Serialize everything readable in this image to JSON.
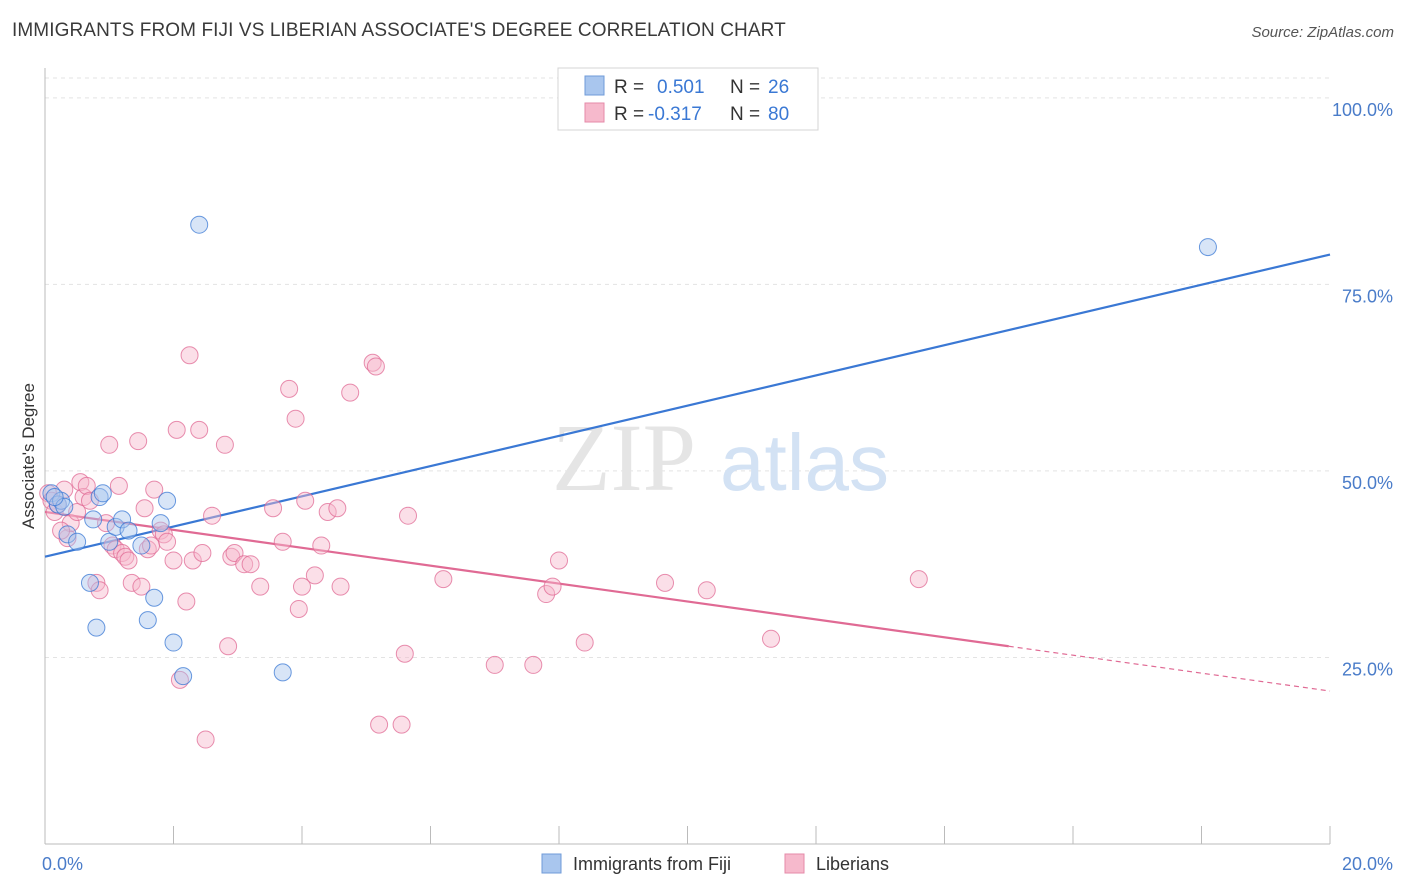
{
  "title": "IMMIGRANTS FROM FIJI VS LIBERIAN ASSOCIATE'S DEGREE CORRELATION CHART",
  "source": "Source: ZipAtlas.com",
  "watermark": {
    "zip": "ZIP",
    "atlas": "atlas"
  },
  "colors": {
    "blue": "#3a78d4",
    "blue_fill": "#a9c6ee",
    "pink": "#e06a94",
    "pink_fill": "#f6b9cc",
    "tick_text": "#4a7cc9",
    "grid": "#e3e3e3"
  },
  "legend": [
    {
      "r_label": "R =",
      "r_value": "0.501",
      "n_label": "N =",
      "n_value": "26",
      "color": "blue"
    },
    {
      "r_label": "R =",
      "r_value": "-0.317",
      "n_label": "N =",
      "n_value": "80",
      "color": "pink"
    }
  ],
  "bottom_legend": [
    {
      "label": "Immigrants from Fiji",
      "color": "blue"
    },
    {
      "label": "Liberians",
      "color": "pink"
    }
  ],
  "chart_data": {
    "type": "scatter",
    "xlabel": "",
    "ylabel": "Associate's Degree",
    "xlim": [
      0,
      20
    ],
    "ylim": [
      0,
      104
    ],
    "x_tick_labels": [
      {
        "value": 0,
        "label": "0.0%"
      },
      {
        "value": 20,
        "label": "20.0%"
      }
    ],
    "y_tick_labels": [
      {
        "value": 25,
        "label": "25.0%"
      },
      {
        "value": 50,
        "label": "50.0%"
      },
      {
        "value": 75,
        "label": "75.0%"
      },
      {
        "value": 100,
        "label": "100.0%"
      }
    ],
    "x_minor_ticks": [
      0,
      2,
      4,
      6,
      8,
      10,
      12,
      14,
      16,
      18,
      20
    ],
    "grid": true,
    "legend_position": "top-center",
    "series": [
      {
        "name": "Immigrants from Fiji",
        "color": "blue",
        "points": [
          [
            0.1,
            47.0
          ],
          [
            0.2,
            45.5
          ],
          [
            0.25,
            46.0
          ],
          [
            0.3,
            45.2
          ],
          [
            0.35,
            41.5
          ],
          [
            0.5,
            40.5
          ],
          [
            0.7,
            35.0
          ],
          [
            0.75,
            43.5
          ],
          [
            0.8,
            29.0
          ],
          [
            0.85,
            46.5
          ],
          [
            0.9,
            47.0
          ],
          [
            1.0,
            40.5
          ],
          [
            1.1,
            42.5
          ],
          [
            1.2,
            43.5
          ],
          [
            1.3,
            42.0
          ],
          [
            1.5,
            40.0
          ],
          [
            1.6,
            30.0
          ],
          [
            1.7,
            33.0
          ],
          [
            1.8,
            43.0
          ],
          [
            1.9,
            46.0
          ],
          [
            2.0,
            27.0
          ],
          [
            2.15,
            22.5
          ],
          [
            2.4,
            83.0
          ],
          [
            3.7,
            23.0
          ],
          [
            18.1,
            80.0
          ],
          [
            0.15,
            46.5
          ]
        ],
        "trend": {
          "x0": 0,
          "y0": 38.5,
          "x1": 20,
          "y1": 79.0
        }
      },
      {
        "name": "Liberians",
        "color": "pink",
        "points": [
          [
            0.05,
            47.0
          ],
          [
            0.1,
            46.0
          ],
          [
            0.15,
            44.5
          ],
          [
            0.2,
            45.5
          ],
          [
            0.3,
            47.5
          ],
          [
            0.35,
            41.0
          ],
          [
            0.4,
            43.0
          ],
          [
            0.5,
            44.5
          ],
          [
            0.55,
            48.5
          ],
          [
            0.6,
            46.5
          ],
          [
            0.65,
            48.0
          ],
          [
            0.7,
            46.0
          ],
          [
            0.8,
            35.0
          ],
          [
            0.85,
            34.0
          ],
          [
            0.95,
            43.0
          ],
          [
            1.0,
            53.5
          ],
          [
            1.05,
            40.0
          ],
          [
            1.1,
            39.5
          ],
          [
            1.15,
            48.0
          ],
          [
            1.2,
            39.0
          ],
          [
            1.25,
            38.5
          ],
          [
            1.3,
            38.0
          ],
          [
            1.35,
            35.0
          ],
          [
            1.45,
            54.0
          ],
          [
            1.5,
            34.5
          ],
          [
            1.55,
            45.0
          ],
          [
            1.6,
            39.5
          ],
          [
            1.7,
            47.5
          ],
          [
            1.8,
            42.0
          ],
          [
            1.85,
            41.5
          ],
          [
            1.9,
            40.5
          ],
          [
            2.0,
            38.0
          ],
          [
            2.05,
            55.5
          ],
          [
            2.1,
            22.0
          ],
          [
            2.2,
            32.5
          ],
          [
            2.25,
            65.5
          ],
          [
            2.3,
            38.0
          ],
          [
            2.4,
            55.5
          ],
          [
            2.45,
            39.0
          ],
          [
            2.5,
            14.0
          ],
          [
            2.6,
            44.0
          ],
          [
            2.8,
            53.5
          ],
          [
            2.85,
            26.5
          ],
          [
            2.9,
            38.5
          ],
          [
            2.95,
            39.0
          ],
          [
            3.1,
            37.5
          ],
          [
            3.2,
            37.5
          ],
          [
            3.35,
            34.5
          ],
          [
            3.55,
            45.0
          ],
          [
            3.7,
            40.5
          ],
          [
            3.8,
            61.0
          ],
          [
            3.9,
            57.0
          ],
          [
            3.95,
            31.5
          ],
          [
            4.0,
            34.5
          ],
          [
            4.05,
            46.0
          ],
          [
            4.2,
            36.0
          ],
          [
            4.3,
            40.0
          ],
          [
            4.4,
            44.5
          ],
          [
            4.55,
            45.0
          ],
          [
            4.6,
            34.5
          ],
          [
            4.75,
            60.5
          ],
          [
            5.1,
            64.5
          ],
          [
            5.15,
            64.0
          ],
          [
            5.2,
            16.0
          ],
          [
            5.55,
            16.0
          ],
          [
            5.6,
            25.5
          ],
          [
            5.65,
            44.0
          ],
          [
            6.2,
            35.5
          ],
          [
            7.0,
            24.0
          ],
          [
            7.6,
            24.0
          ],
          [
            7.8,
            33.5
          ],
          [
            7.9,
            34.5
          ],
          [
            8.0,
            38.0
          ],
          [
            8.4,
            27.0
          ],
          [
            9.65,
            35.0
          ],
          [
            10.3,
            34.0
          ],
          [
            11.3,
            27.5
          ],
          [
            13.6,
            35.5
          ],
          [
            0.25,
            42.0
          ],
          [
            1.65,
            40.0
          ]
        ],
        "trend": {
          "x0": 0,
          "y0": 44.5,
          "x1": 15,
          "y1": 26.5,
          "dash_x1": 20,
          "dash_y1": 20.5
        }
      }
    ]
  }
}
